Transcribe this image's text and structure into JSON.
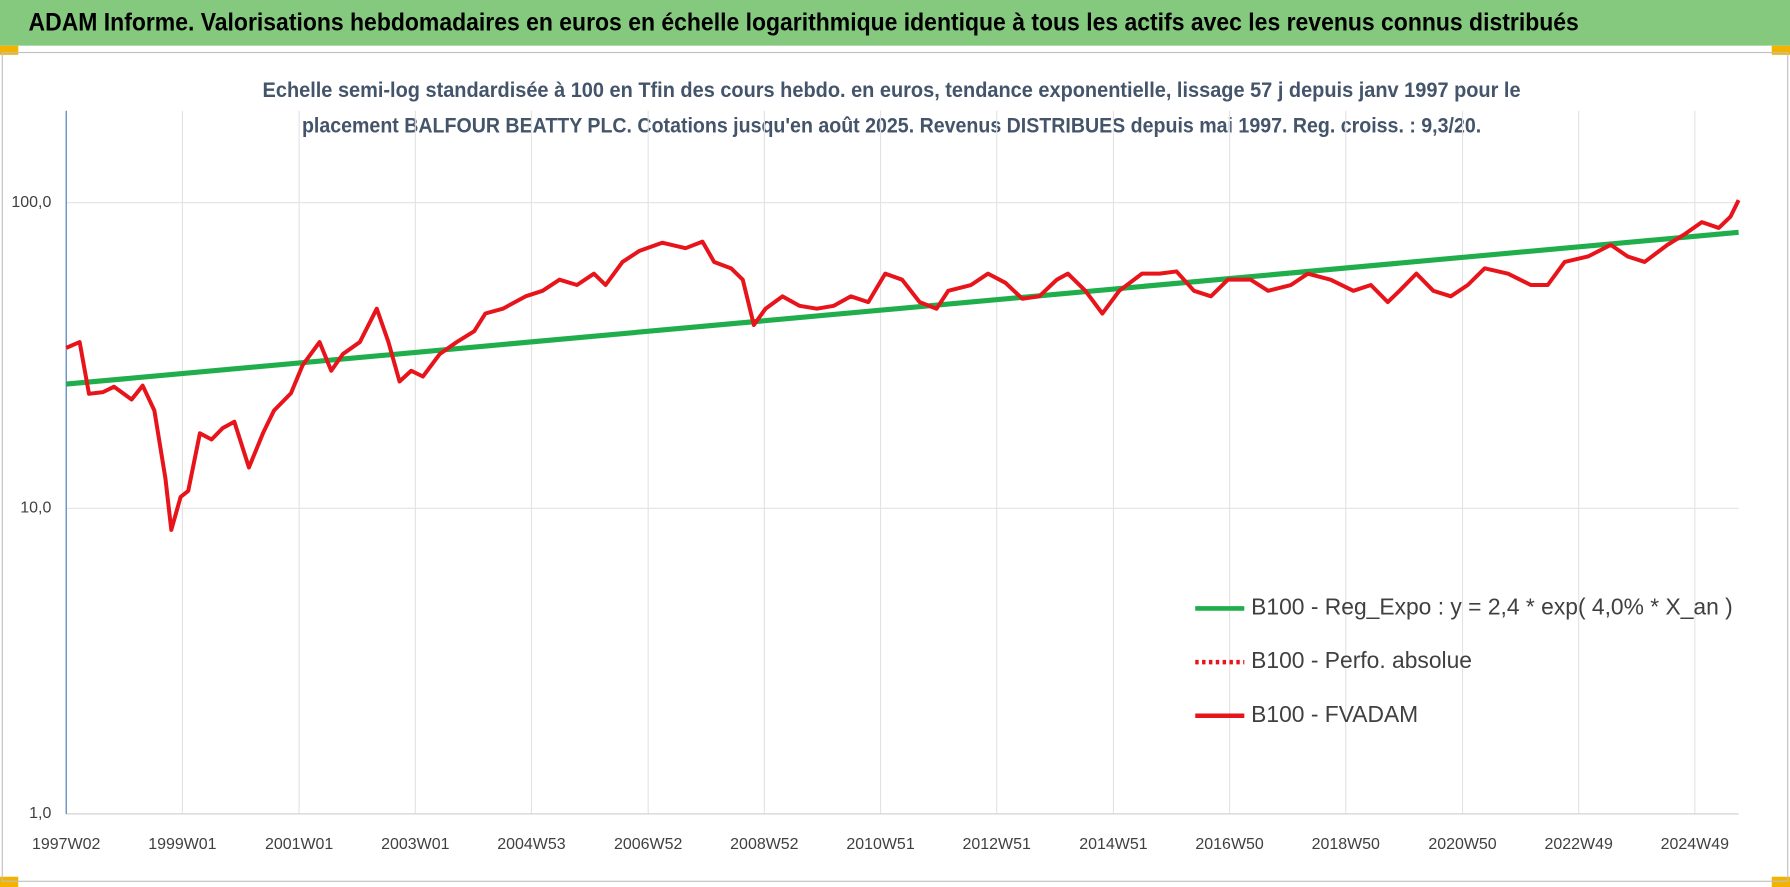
{
  "chart_data": {
    "type": "line",
    "title": "ADAM Informe. Valorisations hebdomadaires en euros en échelle logarithmique identique à tous les actifs avec les revenus connus distribués",
    "subtitle": [
      "Echelle semi-log standardisée à 100 en Tfin des cours hebdo. en euros, tendance exponentielle, lissage 57 j depuis janv 1997 pour le",
      "placement BALFOUR BEATTY PLC. Cotations jusqu'en août 2025. Revenus DISTRIBUES depuis mai 1997. Reg. croiss. : 9,3/20."
    ],
    "log_scale_y": true,
    "grid": true,
    "legend": "lower right",
    "xlim": [
      1997.02,
      2025.67
    ],
    "ylim": [
      1,
      200
    ],
    "yticks": [
      {
        "value": 1,
        "label": "1,0"
      },
      {
        "value": 10,
        "label": "10,0"
      },
      {
        "value": 100,
        "label": "100,0"
      }
    ],
    "xticks": [
      {
        "value": 1997.02,
        "label": "1997W02"
      },
      {
        "value": 1999.01,
        "label": "1999W01"
      },
      {
        "value": 2001.01,
        "label": "2001W01"
      },
      {
        "value": 2003.0,
        "label": "2003W01"
      },
      {
        "value": 2004.99,
        "label": "2004W53"
      },
      {
        "value": 2006.99,
        "label": "2006W52"
      },
      {
        "value": 2008.98,
        "label": "2008W52"
      },
      {
        "value": 2010.97,
        "label": "2010W51"
      },
      {
        "value": 2012.96,
        "label": "2012W51"
      },
      {
        "value": 2014.96,
        "label": "2014W51"
      },
      {
        "value": 2016.95,
        "label": "2016W50"
      },
      {
        "value": 2018.94,
        "label": "2018W50"
      },
      {
        "value": 2020.94,
        "label": "2020W50"
      },
      {
        "value": 2022.93,
        "label": "2022W49"
      },
      {
        "value": 2024.92,
        "label": "2024W49"
      }
    ],
    "series": [
      {
        "name": "B100 - Reg_Expo : y = 2,4 * exp( 4,0% *  X_an )",
        "color": "#1fae4b",
        "dash": "solid",
        "x": [
          1997.02,
          2025.67
        ],
        "values": [
          25.5,
          80
        ]
      },
      {
        "name": "B100 - Perfo. absolue",
        "color": "#e8141b",
        "dash": "dotted"
      },
      {
        "name": "B100 - FVADAM",
        "color": "#e8141b",
        "dash": "solid",
        "x": [
          1997.02,
          1997.25,
          1997.41,
          1997.65,
          1997.84,
          1998.14,
          1998.33,
          1998.53,
          1998.72,
          1998.82,
          1998.98,
          1999.11,
          1999.31,
          1999.51,
          1999.7,
          1999.9,
          2000.15,
          2000.39,
          2000.58,
          2000.87,
          2001.07,
          2001.36,
          2001.56,
          2001.76,
          2002.05,
          2002.34,
          2002.54,
          2002.73,
          2002.93,
          2003.13,
          2003.42,
          2003.71,
          2004.01,
          2004.2,
          2004.5,
          2004.89,
          2005.18,
          2005.47,
          2005.77,
          2006.06,
          2006.26,
          2006.55,
          2006.84,
          2007.23,
          2007.63,
          2007.92,
          2008.12,
          2008.41,
          2008.61,
          2008.8,
          2009.0,
          2009.29,
          2009.58,
          2009.88,
          2010.17,
          2010.46,
          2010.76,
          2011.05,
          2011.34,
          2011.64,
          2011.93,
          2012.13,
          2012.52,
          2012.81,
          2013.11,
          2013.4,
          2013.69,
          2013.99,
          2014.18,
          2014.48,
          2014.77,
          2015.06,
          2015.45,
          2015.75,
          2016.04,
          2016.34,
          2016.63,
          2016.92,
          2017.31,
          2017.61,
          2018.0,
          2018.29,
          2018.68,
          2019.07,
          2019.37,
          2019.66,
          2019.86,
          2020.15,
          2020.44,
          2020.74,
          2021.03,
          2021.32,
          2021.72,
          2022.11,
          2022.4,
          2022.69,
          2023.09,
          2023.48,
          2023.77,
          2024.06,
          2024.45,
          2024.75,
          2025.04,
          2025.33,
          2025.53,
          2025.67
        ],
        "values": [
          33.5,
          35,
          23.7,
          24,
          25,
          22.7,
          25.2,
          20.9,
          12.5,
          8.5,
          10.9,
          11.4,
          17.6,
          16.8,
          18.3,
          19.2,
          13.6,
          17.6,
          20.9,
          23.8,
          29.4,
          35,
          28.2,
          32,
          35,
          45,
          35,
          26,
          28.2,
          27,
          32,
          35,
          38,
          43.4,
          45,
          49.4,
          51.5,
          56,
          53.8,
          58.6,
          53.8,
          64,
          69.6,
          74,
          71,
          74.6,
          64,
          61,
          56,
          39.8,
          45,
          49.4,
          46,
          45,
          46,
          49.4,
          47.3,
          58.6,
          56,
          47.3,
          45,
          51.5,
          53.8,
          58.6,
          54.7,
          48.5,
          49.4,
          56,
          58.6,
          51.5,
          43.4,
          51.5,
          58.6,
          58.6,
          59.6,
          51.5,
          49.4,
          56,
          56,
          51.5,
          53.8,
          58.6,
          56,
          51.5,
          53.8,
          47.3,
          51.5,
          58.6,
          51.5,
          49.4,
          53.8,
          61,
          58.6,
          53.8,
          53.8,
          64,
          66.7,
          72.8,
          66.7,
          64,
          72.8,
          79,
          86.4,
          82.7,
          90,
          102
        ]
      }
    ]
  }
}
